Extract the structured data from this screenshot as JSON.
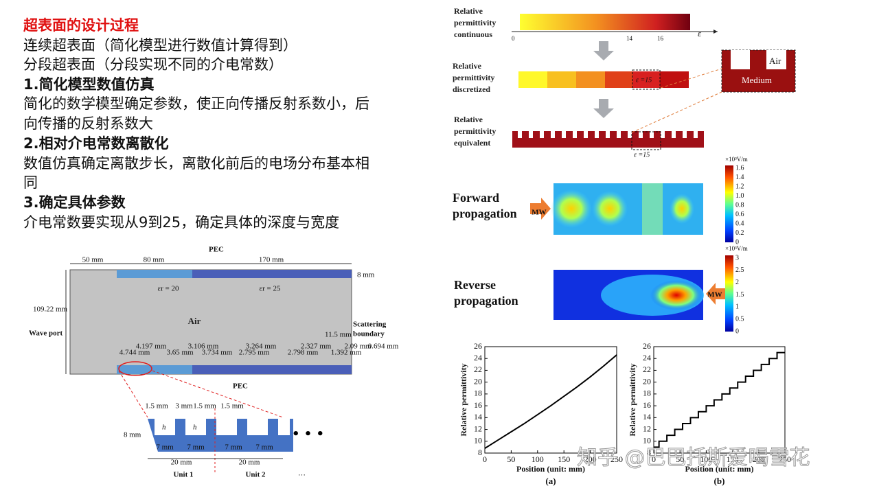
{
  "text": {
    "title": "超表面的设计过程",
    "lines": [
      "连续超表面（简化模型进行数值计算得到）",
      "分段超表面（分段实现不同的介电常数）"
    ],
    "sections": [
      {
        "heading": "1.简化模型数值仿真",
        "body": [
          "简化的数学模型确定参数，使正向传播反射系数小，后",
          "向传播的反射系数大"
        ]
      },
      {
        "heading": "2.相对介电常数离散化",
        "body": [
          "数值仿真确定离散步长，离散化前后的电场分布基本相",
          "同"
        ]
      },
      {
        "heading": "3.确定具体参数",
        "body": [
          "介电常数要实现从9到25，确定具体的深度与宽度"
        ]
      }
    ]
  },
  "structure": {
    "top_dims": [
      "50 mm",
      "80 mm",
      "PEC",
      "170 mm",
      "8 mm"
    ],
    "height": "109.22 mm",
    "wave_port": "Wave port",
    "air": "Air",
    "eps_labels": [
      "εr = 20",
      "εr = 25"
    ],
    "scattering": [
      "Scattering",
      "boundary"
    ],
    "gap": "11.5 mm",
    "dims_upper": [
      "4.197 mm",
      "3.106 mm",
      "3.264 mm",
      "2.327 mm",
      "2.09 mm",
      "0.694 mm"
    ],
    "dims_lower": [
      "4.744 mm",
      "3.65 mm",
      "3.734 mm",
      "2.795 mm",
      "2.798 mm",
      "1.392 mm"
    ],
    "pec_bottom": "PEC"
  },
  "unit_detail": {
    "top": [
      "1.5 mm",
      "3 mm",
      "1.5 mm",
      "1.5 mm"
    ],
    "h": "h",
    "height": "8 mm",
    "widths": [
      "7 mm",
      "7 mm",
      "7 mm",
      "7 mm"
    ],
    "units": [
      "20 mm",
      "20 mm"
    ],
    "names": [
      "Unit 1",
      "Unit 2"
    ],
    "more": "…",
    "dots": "• • •"
  },
  "permittivity": {
    "continuous": [
      "Relative",
      "permittivity",
      "continuous"
    ],
    "axis_ticks": [
      "0",
      "14",
      "16"
    ],
    "axis_symbol": "ε",
    "discretized": [
      "Relative",
      "permittivity",
      "discretized"
    ],
    "eps_mark": "ε =15",
    "inset": [
      "Air",
      "Medium"
    ],
    "equivalent": [
      "Relative",
      "permittivity",
      "equivalent"
    ],
    "eps_mark2": "ε =15"
  },
  "fields": [
    {
      "label": [
        "Forward",
        "propagation"
      ],
      "source": "MW",
      "unit": "×10³V/m",
      "ticks": [
        "1.6",
        "1.4",
        "1.2",
        "1.0",
        "0.8",
        "0.6",
        "0.4",
        "0.2",
        "0"
      ]
    },
    {
      "label": [
        "Reverse",
        "propagation"
      ],
      "source": "MW",
      "unit": "×10³V/m",
      "ticks": [
        "3",
        "2.5",
        "2",
        "1.5",
        "1",
        "0.5",
        "0"
      ]
    }
  ],
  "plots": [
    {
      "type": "line",
      "xlabel": "Position (unit: mm)",
      "ylabel": "Relative permittivity",
      "caption": "(a)",
      "x": [
        0,
        25,
        50,
        75,
        100,
        125,
        150,
        175,
        200,
        225,
        250
      ],
      "values": [
        8.8,
        10.2,
        11.6,
        13.0,
        14.5,
        16.0,
        17.6,
        19.2,
        20.9,
        22.7,
        24.6
      ],
      "xlim": [
        0,
        250
      ],
      "ylim": [
        8,
        26
      ],
      "xticks": [
        0,
        50,
        100,
        150,
        200,
        250
      ],
      "yticks": [
        8,
        10,
        12,
        14,
        16,
        18,
        20,
        22,
        24,
        26
      ],
      "color": "#000000"
    },
    {
      "type": "line",
      "xlabel": "Position (unit: mm)",
      "ylabel": "Relative permittivity",
      "caption": "(b)",
      "x": [
        0,
        10,
        10,
        25,
        25,
        40,
        40,
        55,
        55,
        70,
        70,
        85,
        85,
        100,
        100,
        115,
        115,
        130,
        130,
        145,
        145,
        160,
        160,
        175,
        175,
        190,
        190,
        205,
        205,
        220,
        220,
        235,
        235,
        250
      ],
      "values": [
        9,
        9,
        10,
        10,
        11,
        11,
        12,
        12,
        13,
        13,
        14,
        14,
        15,
        15,
        16,
        16,
        17,
        17,
        18,
        18,
        19,
        19,
        20,
        20,
        21,
        21,
        22,
        22,
        23,
        23,
        24,
        24,
        25,
        25
      ],
      "xlim": [
        0,
        250
      ],
      "ylim": [
        8,
        26
      ],
      "xticks": [
        0,
        50,
        100,
        150,
        200,
        250
      ],
      "yticks": [
        8,
        10,
        12,
        14,
        16,
        18,
        20,
        22,
        24,
        26
      ],
      "color": "#000000"
    }
  ],
  "watermark": "知乎 @巴巴托斯爱喝雪花"
}
